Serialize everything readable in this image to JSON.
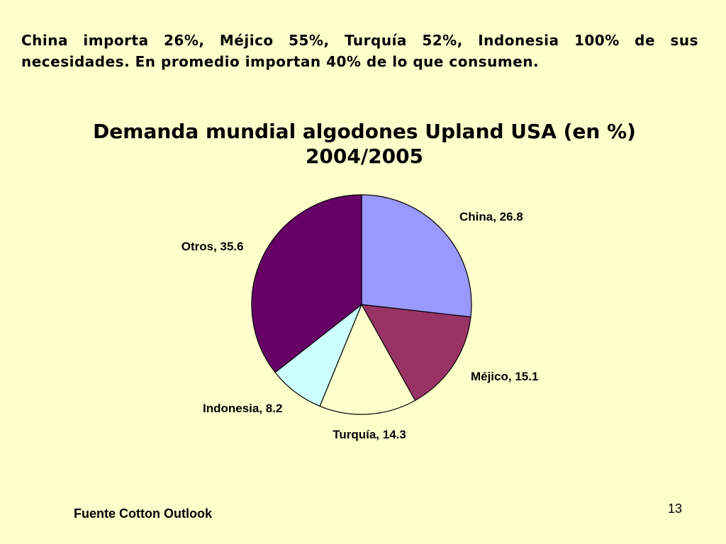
{
  "header": {
    "text": "China importa 26%, Méjico 55%, Turquía 52%, Indonesia 100% de sus necesidades.  En promedio importan 40% de lo que consumen."
  },
  "chart_data": {
    "type": "pie",
    "title": "Demanda mundial algodones Upland USA (en %)",
    "subtitle": "2004/2005",
    "values": [
      26.8,
      15.1,
      14.3,
      8.2,
      35.6
    ],
    "value_labels": [
      "China, 26.8",
      "Méjico, 15.1",
      "Turquía, 14.3",
      "Indonesia, 8.2",
      "Otros, 35.6"
    ],
    "colors": [
      "#9999ff",
      "#993366",
      "#ffffcc",
      "#ccffff",
      "#660066"
    ]
  },
  "footer": {
    "source": "Fuente Cotton Outlook",
    "page_number": "13"
  }
}
